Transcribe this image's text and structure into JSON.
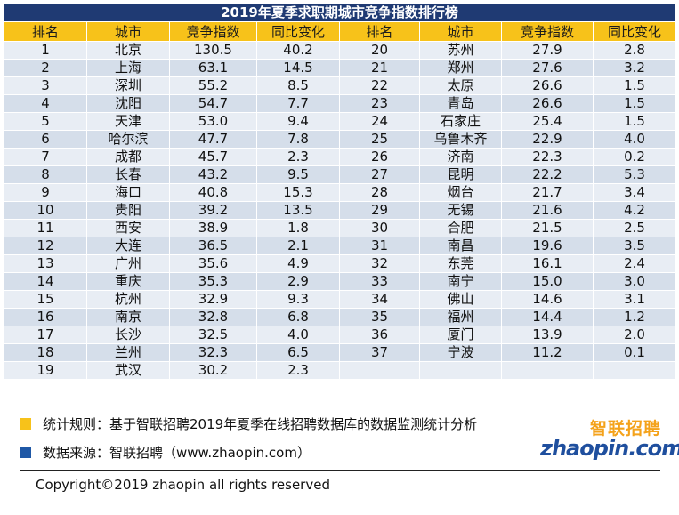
{
  "title": "2019年夏季求职期城市竞争指数排行榜",
  "headers": [
    "排名",
    "城市",
    "竞争指数",
    "同比变化",
    "排名",
    "城市",
    "竞争指数",
    "同比变化"
  ],
  "left": [
    [
      "1",
      "北京",
      "130.5",
      "40.2"
    ],
    [
      "2",
      "上海",
      "63.1",
      "14.5"
    ],
    [
      "3",
      "深圳",
      "55.2",
      "8.5"
    ],
    [
      "4",
      "沈阳",
      "54.7",
      "7.7"
    ],
    [
      "5",
      "天津",
      "53.0",
      "9.4"
    ],
    [
      "6",
      "哈尔滨",
      "47.7",
      "7.8"
    ],
    [
      "7",
      "成都",
      "45.7",
      "2.3"
    ],
    [
      "8",
      "长春",
      "43.2",
      "9.5"
    ],
    [
      "9",
      "海口",
      "40.8",
      "15.3"
    ],
    [
      "10",
      "贵阳",
      "39.2",
      "13.5"
    ],
    [
      "11",
      "西安",
      "38.9",
      "1.8"
    ],
    [
      "12",
      "大连",
      "36.5",
      "2.1"
    ],
    [
      "13",
      "广州",
      "35.6",
      "4.9"
    ],
    [
      "14",
      "重庆",
      "35.3",
      "2.9"
    ],
    [
      "15",
      "杭州",
      "32.9",
      "9.3"
    ],
    [
      "16",
      "南京",
      "32.8",
      "6.8"
    ],
    [
      "17",
      "长沙",
      "32.5",
      "4.0"
    ],
    [
      "18",
      "兰州",
      "32.3",
      "6.5"
    ],
    [
      "19",
      "武汉",
      "30.2",
      "2.3"
    ]
  ],
  "right": [
    [
      "20",
      "苏州",
      "27.9",
      "2.8"
    ],
    [
      "21",
      "郑州",
      "27.6",
      "3.2"
    ],
    [
      "22",
      "太原",
      "26.6",
      "1.5"
    ],
    [
      "23",
      "青岛",
      "26.6",
      "1.5"
    ],
    [
      "24",
      "石家庄",
      "25.4",
      "1.5"
    ],
    [
      "25",
      "乌鲁木齐",
      "22.9",
      "4.0"
    ],
    [
      "26",
      "济南",
      "22.3",
      "0.2"
    ],
    [
      "27",
      "昆明",
      "22.2",
      "5.3"
    ],
    [
      "28",
      "烟台",
      "21.7",
      "3.4"
    ],
    [
      "29",
      "无锡",
      "21.6",
      "4.2"
    ],
    [
      "30",
      "合肥",
      "21.5",
      "2.5"
    ],
    [
      "31",
      "南昌",
      "19.6",
      "3.5"
    ],
    [
      "32",
      "东莞",
      "16.1",
      "2.4"
    ],
    [
      "33",
      "南宁",
      "15.0",
      "3.0"
    ],
    [
      "34",
      "佛山",
      "14.6",
      "3.1"
    ],
    [
      "35",
      "福州",
      "14.4",
      "1.2"
    ],
    [
      "36",
      "厦门",
      "13.9",
      "2.0"
    ],
    [
      "37",
      "宁波",
      "11.2",
      "0.1"
    ],
    [
      "",
      "",
      "",
      ""
    ]
  ],
  "notes": {
    "rule": "统计规则：基于智联招聘2019年夏季在线招聘数据库的数据监测统计分析",
    "source": "数据来源：智联招聘（www.zhaopin.com）"
  },
  "logo": {
    "cn": "智联招聘",
    "en": "zhaopin.com"
  },
  "copyright": "Copyright©2019 zhaopin all rights reserved",
  "colors": {
    "title_bg": "#1f3a73",
    "header_bg": "#f7c21a",
    "row_odd": "#e8edf4",
    "row_even": "#d5deea",
    "legend_yellow": "#f7c21a",
    "legend_blue": "#1f58a6"
  }
}
